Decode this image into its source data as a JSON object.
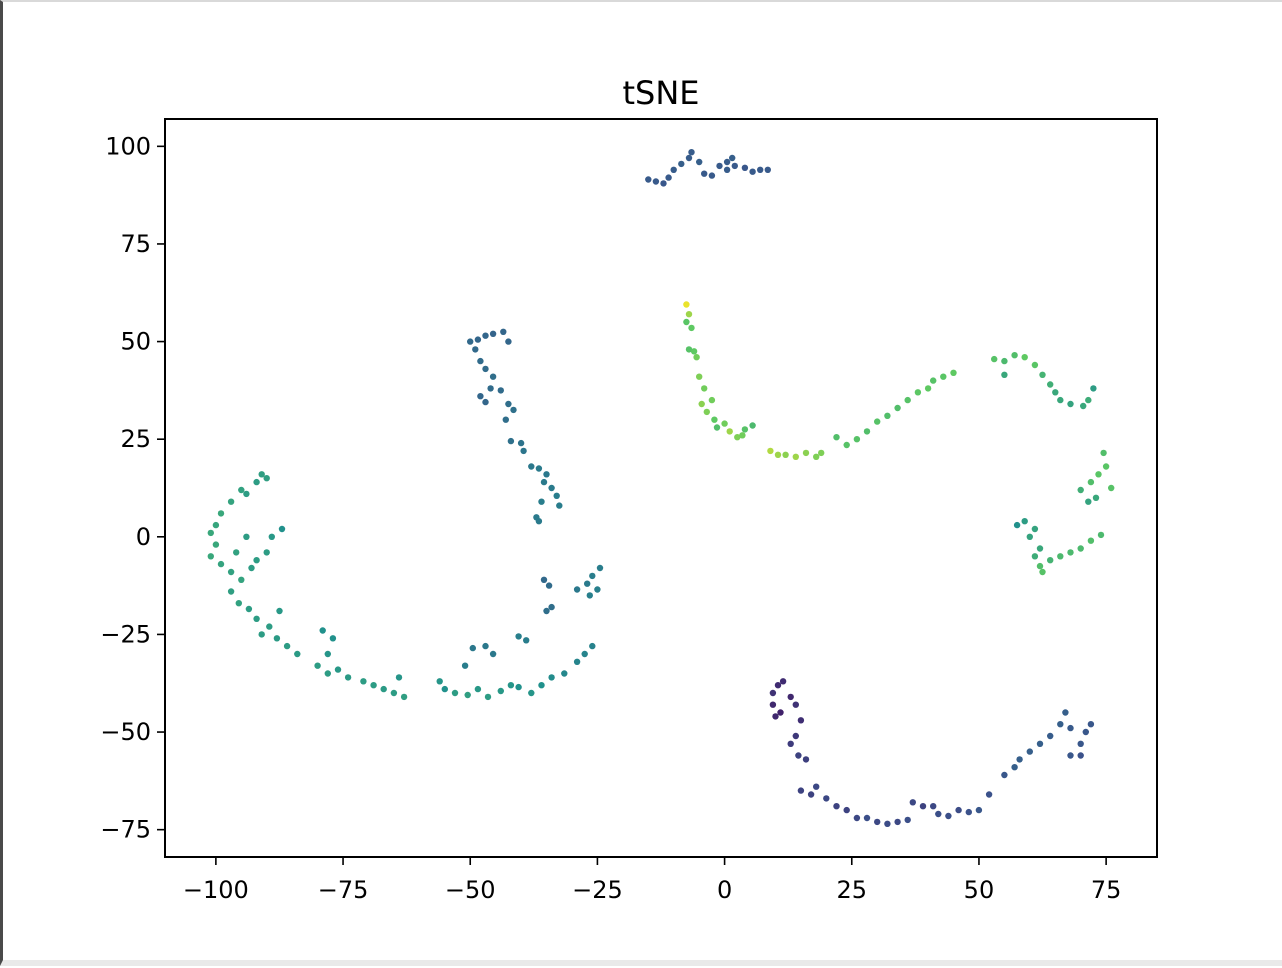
{
  "chart_data": {
    "type": "scatter",
    "title": "tSNE",
    "xlabel": "",
    "ylabel": "",
    "xlim": [
      -110,
      85
    ],
    "ylim": [
      -82,
      107
    ],
    "xticks": [
      -100,
      -75,
      -50,
      -25,
      0,
      25,
      50,
      75
    ],
    "yticks": [
      100,
      75,
      50,
      25,
      0,
      -25,
      -50,
      -75
    ],
    "xtick_labels": [
      "−100",
      "−75",
      "−50",
      "−25",
      "0",
      "25",
      "50",
      "75"
    ],
    "ytick_labels": [
      "100",
      "75",
      "50",
      "25",
      "0",
      "−25",
      "−50",
      "−75"
    ],
    "grid": false,
    "legend": "none",
    "colormap": "viridis",
    "points": [
      [
        -15,
        91.5,
        0.28
      ],
      [
        -13.5,
        91,
        0.28
      ],
      [
        -12,
        90.5,
        0.27
      ],
      [
        -11,
        92,
        0.28
      ],
      [
        -10,
        94,
        0.29
      ],
      [
        -8.5,
        95.5,
        0.3
      ],
      [
        -7,
        97,
        0.29
      ],
      [
        -6.5,
        98.5,
        0.29
      ],
      [
        -5,
        96,
        0.3
      ],
      [
        -4,
        93,
        0.28
      ],
      [
        -2.5,
        92.5,
        0.28
      ],
      [
        -1,
        95,
        0.28
      ],
      [
        0.5,
        96,
        0.29
      ],
      [
        0.5,
        94,
        0.29
      ],
      [
        1.5,
        97,
        0.3
      ],
      [
        2,
        95,
        0.28
      ],
      [
        4,
        94.5,
        0.27
      ],
      [
        5.5,
        93.5,
        0.28
      ],
      [
        7,
        94,
        0.28
      ],
      [
        8.5,
        94,
        0.28
      ],
      [
        -50,
        50,
        0.34
      ],
      [
        -49,
        48,
        0.34
      ],
      [
        -48.5,
        50.5,
        0.33
      ],
      [
        -47,
        51.5,
        0.33
      ],
      [
        -45.5,
        52,
        0.32
      ],
      [
        -43.5,
        52.5,
        0.33
      ],
      [
        -42.5,
        50,
        0.33
      ],
      [
        -48,
        45,
        0.35
      ],
      [
        -47,
        43,
        0.35
      ],
      [
        -45.5,
        41,
        0.36
      ],
      [
        -46,
        38,
        0.35
      ],
      [
        -44,
        37.5,
        0.35
      ],
      [
        -48,
        36,
        0.33
      ],
      [
        -47,
        34.5,
        0.33
      ],
      [
        -42.5,
        34,
        0.36
      ],
      [
        -43,
        30,
        0.36
      ],
      [
        -41.5,
        32.5,
        0.37
      ],
      [
        -42,
        24.5,
        0.37
      ],
      [
        -40,
        24,
        0.38
      ],
      [
        -39.5,
        22,
        0.39
      ],
      [
        -38,
        18,
        0.4
      ],
      [
        -36.5,
        17.5,
        0.41
      ],
      [
        -35,
        16,
        0.4
      ],
      [
        -35.5,
        14,
        0.41
      ],
      [
        -34,
        12.5,
        0.41
      ],
      [
        -33,
        10.5,
        0.42
      ],
      [
        -32.5,
        8,
        0.42
      ],
      [
        -36,
        9,
        0.42
      ],
      [
        -37,
        5,
        0.41
      ],
      [
        -36.5,
        4,
        0.41
      ],
      [
        -91,
        16,
        0.56
      ],
      [
        -90,
        15,
        0.56
      ],
      [
        -92,
        14,
        0.55
      ],
      [
        -95,
        12,
        0.57
      ],
      [
        -94,
        11,
        0.55
      ],
      [
        -97,
        9,
        0.58
      ],
      [
        -99,
        6,
        0.6
      ],
      [
        -100,
        3,
        0.59
      ],
      [
        -101,
        1,
        0.6
      ],
      [
        -100,
        -2,
        0.6
      ],
      [
        -101,
        -5,
        0.6
      ],
      [
        -99,
        -7,
        0.58
      ],
      [
        -97,
        -9,
        0.57
      ],
      [
        -95,
        -11,
        0.58
      ],
      [
        -97,
        -14,
        0.56
      ],
      [
        -95.5,
        -17,
        0.57
      ],
      [
        -93.5,
        -18.5,
        0.55
      ],
      [
        -93,
        -8,
        0.55
      ],
      [
        -92,
        -6,
        0.55
      ],
      [
        -90,
        -4,
        0.55
      ],
      [
        -89,
        0,
        0.53
      ],
      [
        -87,
        2,
        0.5
      ],
      [
        -94,
        0,
        0.55
      ],
      [
        -96,
        -4,
        0.57
      ],
      [
        -92,
        -21,
        0.55
      ],
      [
        -89.5,
        -23,
        0.55
      ],
      [
        -87.5,
        -19,
        0.53
      ],
      [
        -91,
        -25,
        0.55
      ],
      [
        -88,
        -26,
        0.54
      ],
      [
        -86,
        -28,
        0.55
      ],
      [
        -84,
        -30,
        0.54
      ],
      [
        -79,
        -24,
        0.5
      ],
      [
        -77,
        -26,
        0.5
      ],
      [
        -78,
        -30,
        0.52
      ],
      [
        -80,
        -33,
        0.55
      ],
      [
        -78,
        -35,
        0.55
      ],
      [
        -76,
        -34,
        0.53
      ],
      [
        -74,
        -36,
        0.54
      ],
      [
        -71,
        -37,
        0.55
      ],
      [
        -69,
        -38,
        0.55
      ],
      [
        -67,
        -39,
        0.54
      ],
      [
        -65,
        -40,
        0.55
      ],
      [
        -63,
        -41,
        0.56
      ],
      [
        -64,
        -36,
        0.52
      ],
      [
        -56,
        -37,
        0.52
      ],
      [
        -55,
        -39,
        0.5
      ],
      [
        -53,
        -40,
        0.55
      ],
      [
        -50.5,
        -40.5,
        0.56
      ],
      [
        -48.5,
        -39,
        0.53
      ],
      [
        -46.5,
        -41,
        0.55
      ],
      [
        -44,
        -39.5,
        0.53
      ],
      [
        -42,
        -38,
        0.52
      ],
      [
        -40.5,
        -38.5,
        0.5
      ],
      [
        -38,
        -40,
        0.52
      ],
      [
        -36,
        -38,
        0.5
      ],
      [
        -34,
        -36,
        0.48
      ],
      [
        -31.5,
        -35,
        0.46
      ],
      [
        -29,
        -32,
        0.45
      ],
      [
        -27.5,
        -30,
        0.45
      ],
      [
        -26,
        -28,
        0.44
      ],
      [
        -51,
        -33,
        0.42
      ],
      [
        -49.5,
        -28.5,
        0.4
      ],
      [
        -47,
        -28,
        0.4
      ],
      [
        -45.5,
        -30,
        0.4
      ],
      [
        -40.5,
        -25.5,
        0.43
      ],
      [
        -39,
        -26.5,
        0.42
      ],
      [
        -35,
        -19,
        0.36
      ],
      [
        -34,
        -18,
        0.36
      ],
      [
        -35.5,
        -11,
        0.34
      ],
      [
        -34.5,
        -12.5,
        0.35
      ],
      [
        -29,
        -13.5,
        0.4
      ],
      [
        -27,
        -12,
        0.41
      ],
      [
        -26,
        -10,
        0.42
      ],
      [
        -25,
        -13.5,
        0.43
      ],
      [
        -24.5,
        -8,
        0.42
      ],
      [
        -26.5,
        -15,
        0.43
      ],
      [
        -7.5,
        59.5,
        0.97
      ],
      [
        -7,
        57,
        0.85
      ],
      [
        -7.5,
        55,
        0.73
      ],
      [
        -6.5,
        53.5,
        0.75
      ],
      [
        -7,
        48,
        0.72
      ],
      [
        -6,
        47.5,
        0.75
      ],
      [
        -5.5,
        46,
        0.78
      ],
      [
        -5,
        41,
        0.8
      ],
      [
        -4,
        38,
        0.78
      ],
      [
        -4.5,
        34,
        0.82
      ],
      [
        -3.5,
        32,
        0.8
      ],
      [
        -2.5,
        35,
        0.78
      ],
      [
        -2,
        30,
        0.75
      ],
      [
        -1.5,
        28,
        0.7
      ],
      [
        0,
        29,
        0.78
      ],
      [
        1,
        27,
        0.85
      ],
      [
        2.5,
        25.5,
        0.8
      ],
      [
        3.5,
        26,
        0.78
      ],
      [
        4,
        27.5,
        0.72
      ],
      [
        5.5,
        28.5,
        0.68
      ],
      [
        9,
        22,
        0.88
      ],
      [
        10.5,
        21,
        0.85
      ],
      [
        12,
        21,
        0.82
      ],
      [
        14,
        20.5,
        0.85
      ],
      [
        16,
        21.5,
        0.82
      ],
      [
        18,
        20.5,
        0.8
      ],
      [
        19,
        21.5,
        0.8
      ],
      [
        22,
        25.5,
        0.7
      ],
      [
        24,
        23.5,
        0.72
      ],
      [
        26,
        25,
        0.72
      ],
      [
        28,
        27,
        0.7
      ],
      [
        30,
        29.5,
        0.72
      ],
      [
        32,
        31,
        0.7
      ],
      [
        34,
        33,
        0.7
      ],
      [
        36,
        35,
        0.72
      ],
      [
        38,
        37,
        0.74
      ],
      [
        40,
        38,
        0.75
      ],
      [
        41,
        40,
        0.72
      ],
      [
        43,
        41,
        0.73
      ],
      [
        45,
        42,
        0.75
      ],
      [
        53,
        45.5,
        0.72
      ],
      [
        55,
        45,
        0.68
      ],
      [
        57,
        46.5,
        0.7
      ],
      [
        59,
        46,
        0.75
      ],
      [
        61,
        44,
        0.73
      ],
      [
        62.5,
        41.5,
        0.65
      ],
      [
        64,
        39,
        0.63
      ],
      [
        65,
        37,
        0.6
      ],
      [
        66,
        35,
        0.6
      ],
      [
        68,
        34,
        0.58
      ],
      [
        70.5,
        33.5,
        0.6
      ],
      [
        71.5,
        35,
        0.62
      ],
      [
        72.5,
        38,
        0.55
      ],
      [
        55,
        41.5,
        0.6
      ],
      [
        74.5,
        21.5,
        0.7
      ],
      [
        75,
        18,
        0.73
      ],
      [
        73.5,
        16,
        0.73
      ],
      [
        72,
        14,
        0.7
      ],
      [
        70,
        12,
        0.63
      ],
      [
        71.5,
        9,
        0.58
      ],
      [
        73,
        10,
        0.6
      ],
      [
        76,
        12.5,
        0.72
      ],
      [
        74,
        0.5,
        0.68
      ],
      [
        72,
        -1,
        0.7
      ],
      [
        70,
        -3,
        0.68
      ],
      [
        68,
        -4,
        0.68
      ],
      [
        66,
        -5,
        0.68
      ],
      [
        64,
        -6,
        0.65
      ],
      [
        62,
        -7.5,
        0.7
      ],
      [
        62.5,
        -9,
        0.72
      ],
      [
        61,
        -5,
        0.62
      ],
      [
        62,
        -3,
        0.6
      ],
      [
        60,
        0,
        0.58
      ],
      [
        61,
        2,
        0.58
      ],
      [
        59,
        4,
        0.55
      ],
      [
        57.5,
        3,
        0.5
      ],
      [
        9.5,
        -40,
        0.15
      ],
      [
        10.5,
        -38,
        0.13
      ],
      [
        11.5,
        -37,
        0.13
      ],
      [
        9.5,
        -43,
        0.12
      ],
      [
        10,
        -46,
        0.12
      ],
      [
        11,
        -45,
        0.1
      ],
      [
        13,
        -41,
        0.12
      ],
      [
        14,
        -43,
        0.15
      ],
      [
        15,
        -47,
        0.14
      ],
      [
        14,
        -51,
        0.17
      ],
      [
        13,
        -53,
        0.18
      ],
      [
        14.5,
        -56,
        0.2
      ],
      [
        16,
        -57,
        0.19
      ],
      [
        15,
        -65,
        0.2
      ],
      [
        17,
        -66,
        0.2
      ],
      [
        18,
        -64,
        0.22
      ],
      [
        20,
        -67,
        0.22
      ],
      [
        22,
        -69,
        0.2
      ],
      [
        24,
        -70,
        0.2
      ],
      [
        26,
        -72,
        0.22
      ],
      [
        28,
        -72,
        0.24
      ],
      [
        30,
        -73,
        0.22
      ],
      [
        32,
        -73.5,
        0.23
      ],
      [
        34,
        -73,
        0.22
      ],
      [
        36,
        -72.5,
        0.24
      ],
      [
        37,
        -68,
        0.22
      ],
      [
        39,
        -69,
        0.2
      ],
      [
        41,
        -69,
        0.22
      ],
      [
        42,
        -71,
        0.24
      ],
      [
        44,
        -71.5,
        0.24
      ],
      [
        46,
        -70,
        0.23
      ],
      [
        48,
        -70.5,
        0.25
      ],
      [
        50,
        -70,
        0.27
      ],
      [
        52,
        -66,
        0.25
      ],
      [
        55,
        -61,
        0.27
      ],
      [
        57,
        -59,
        0.3
      ],
      [
        58,
        -57,
        0.3
      ],
      [
        60,
        -55,
        0.3
      ],
      [
        62,
        -53,
        0.3
      ],
      [
        64,
        -51,
        0.29
      ],
      [
        66,
        -48,
        0.3
      ],
      [
        67,
        -45,
        0.3
      ],
      [
        68,
        -49,
        0.28
      ],
      [
        68,
        -56,
        0.27
      ],
      [
        70,
        -53,
        0.27
      ],
      [
        71,
        -50,
        0.27
      ],
      [
        72,
        -48,
        0.27
      ],
      [
        70,
        -56,
        0.25
      ]
    ]
  }
}
